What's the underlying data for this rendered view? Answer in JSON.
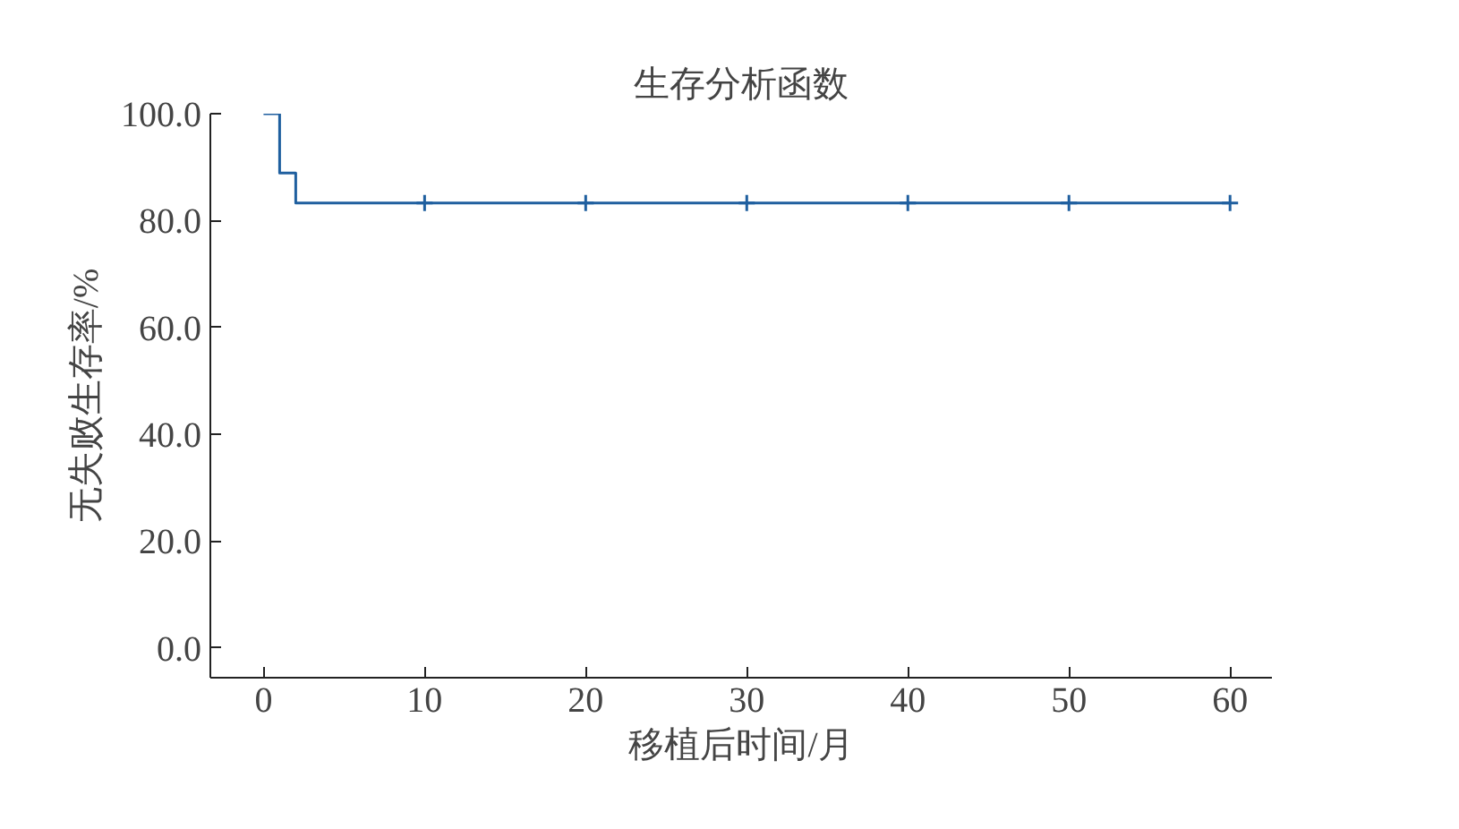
{
  "chart_data": {
    "type": "step",
    "title": "生存分析函数",
    "xlabel": "移植后时间/月",
    "ylabel": "无失败生存率/%",
    "series": [
      {
        "color": "#1f5f9f",
        "x": [
          0,
          1,
          2,
          60
        ],
        "values": [
          100,
          88.9,
          83.3,
          83.3
        ],
        "marker": "none"
      },
      {
        "type": "scatter",
        "color": "#1f5f9f",
        "x": [
          10,
          20,
          30,
          40,
          50,
          60
        ],
        "values": [
          83.3,
          83.3,
          83.3,
          83.3,
          83.3,
          83.3
        ],
        "marker": "cross"
      }
    ],
    "xlim": [
      -3.3,
      62.6
    ],
    "xticks": [
      0,
      10,
      20,
      30,
      40,
      50,
      60
    ],
    "ylim": [
      -5.6,
      100
    ],
    "yticks": [
      {
        "value": 0,
        "label": "0.0"
      },
      {
        "value": 20,
        "label": "20.0"
      },
      {
        "value": 40,
        "label": "40.0"
      },
      {
        "value": 60,
        "label": "60.0"
      },
      {
        "value": 80,
        "label": "80.0"
      },
      {
        "value": 100,
        "label": "100.0"
      }
    ],
    "grid": false
  }
}
